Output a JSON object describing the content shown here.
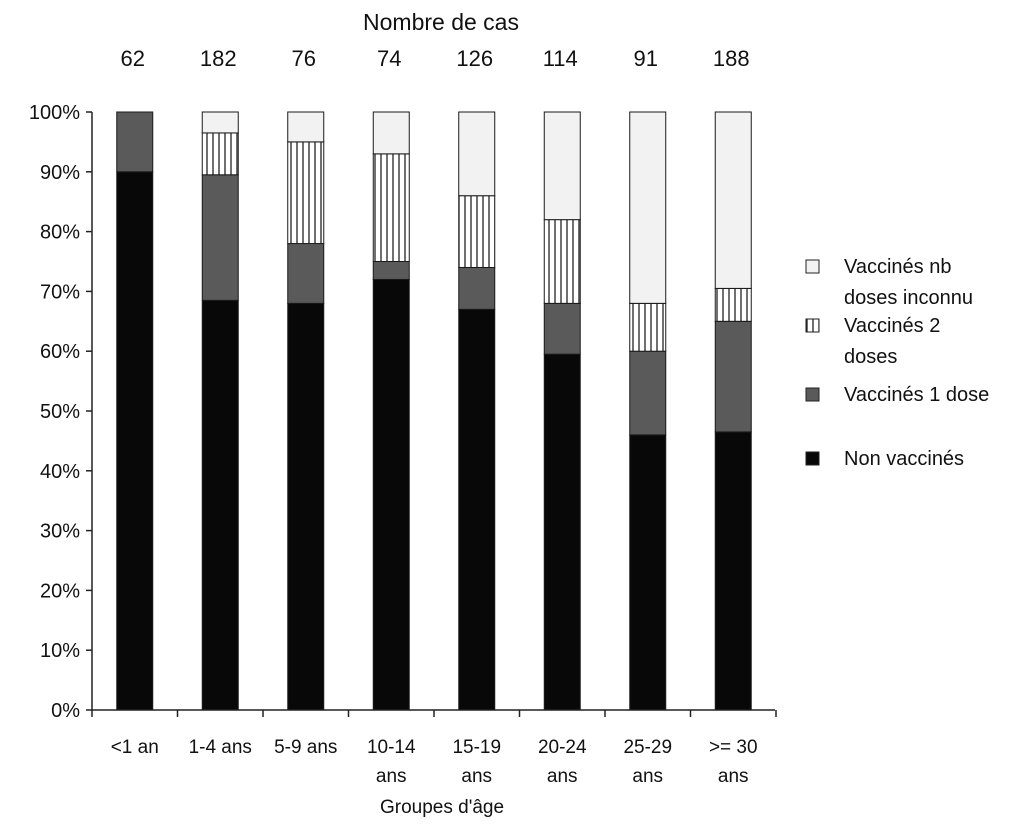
{
  "chart_data": {
    "type": "bar",
    "stacked": true,
    "percent": true,
    "title": "Nombre de cas",
    "xlabel": "Groupes d'âge",
    "ylabel": "",
    "ylim": [
      0,
      100
    ],
    "yticks": [
      "0%",
      "10%",
      "20%",
      "30%",
      "40%",
      "50%",
      "60%",
      "70%",
      "80%",
      "90%",
      "100%"
    ],
    "categories": [
      [
        "<1 an"
      ],
      [
        "1-4 ans"
      ],
      [
        "5-9 ans"
      ],
      [
        "10-14",
        "ans"
      ],
      [
        "15-19",
        "ans"
      ],
      [
        "20-24",
        "ans"
      ],
      [
        "25-29",
        "ans"
      ],
      [
        ">= 30",
        "ans"
      ]
    ],
    "case_counts": [
      "62",
      "182",
      "76",
      "74",
      "126",
      "114",
      "91",
      "188"
    ],
    "series": [
      {
        "name": "Non vaccinés",
        "values": [
          90,
          68.5,
          68,
          72,
          67,
          59.5,
          46,
          46.5
        ]
      },
      {
        "name": "Vaccinés 1 dose",
        "values": [
          10,
          21,
          10,
          3,
          7,
          8.5,
          14,
          18.5
        ]
      },
      {
        "name": "Vaccinés 2 doses",
        "values": [
          0,
          7,
          17,
          18,
          12,
          14,
          8,
          5.5
        ]
      },
      {
        "name": "Vaccinés nb doses inconnu",
        "values": [
          0,
          3.5,
          5,
          7,
          14,
          18,
          32,
          29.5
        ]
      }
    ],
    "legend": {
      "position": "right",
      "entries": [
        {
          "series": "Vaccinés nb doses inconnu",
          "lines": [
            "Vaccinés nb",
            "doses inconnu"
          ]
        },
        {
          "series": "Vaccinés 2 doses",
          "lines": [
            "Vaccinés 2",
            "doses"
          ]
        },
        {
          "series": "Vaccinés 1 dose",
          "lines": [
            "Vaccinés 1 dose"
          ]
        },
        {
          "series": "Non vaccinés",
          "lines": [
            "Non vaccinés"
          ]
        }
      ]
    },
    "colors": {
      "Non vaccinés": "#080808",
      "Vaccinés 1 dose": "#5a5a5a",
      "Vaccinés 2 doses": "#ffffff",
      "Vaccinés nb doses inconnu": "#f2f2f2"
    },
    "grid": false
  }
}
